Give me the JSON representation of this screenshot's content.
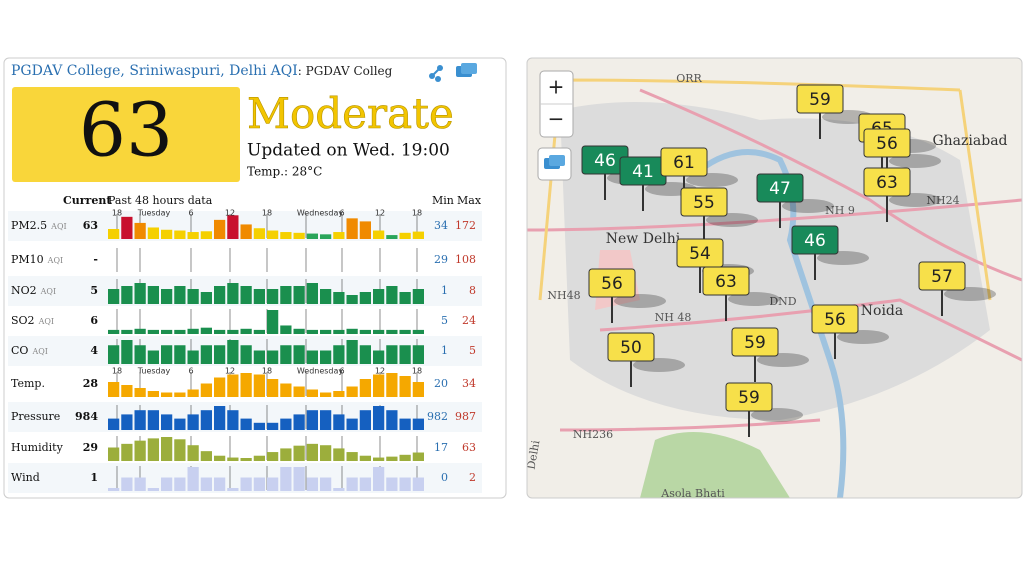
{
  "widget": {
    "station": "PGDAV College, Sriniwaspuri, Delhi",
    "aqi_link": "AQI",
    "station_short": ": PGDAV Colleg",
    "aqi": 63,
    "level": "Moderate",
    "updated": "Updated on Wed. 19:00",
    "temp": "Temp.: 28°C",
    "headers": {
      "current": "Current",
      "past": "Past 48 hours data",
      "min": "Min",
      "max": "Max"
    },
    "time_ticks": [
      "18",
      "Tuesday",
      "6",
      "12",
      "18",
      "Wednesday",
      "6",
      "12",
      "18"
    ],
    "rows": [
      {
        "name": "PM2.5",
        "unit": "AQI",
        "current": 63,
        "min": 34,
        "max": 172,
        "color": "#f5d000",
        "history": [
          80,
          160,
          120,
          90,
          75,
          70,
          60,
          65,
          140,
          170,
          110,
          85,
          70,
          60,
          55,
          50,
          45,
          60,
          150,
          130,
          70,
          40,
          55,
          63
        ]
      },
      {
        "name": "PM10",
        "unit": "AQI",
        "current": "-",
        "min": 29,
        "max": 108,
        "color": "#f5d000",
        "history": []
      },
      {
        "name": "NO2",
        "unit": "AQI",
        "current": 5,
        "min": 1,
        "max": 8,
        "color": "#1a8f4e",
        "history": [
          5,
          6,
          7,
          6,
          5,
          6,
          5,
          4,
          6,
          7,
          6,
          5,
          5,
          6,
          6,
          7,
          5,
          4,
          3,
          4,
          5,
          6,
          4,
          5
        ]
      },
      {
        "name": "SO2",
        "unit": "AQI",
        "current": 6,
        "min": 5,
        "max": 24,
        "color": "#1a8f4e",
        "history": [
          6,
          6,
          7,
          6,
          6,
          6,
          7,
          8,
          6,
          6,
          7,
          6,
          24,
          10,
          7,
          6,
          6,
          6,
          7,
          6,
          6,
          6,
          6,
          6
        ]
      },
      {
        "name": "CO",
        "unit": "AQI",
        "current": 4,
        "min": 1,
        "max": 5,
        "color": "#1a8f4e",
        "history": [
          4,
          5,
          4,
          3,
          4,
          4,
          3,
          4,
          4,
          5,
          4,
          3,
          3,
          4,
          4,
          3,
          3,
          4,
          5,
          4,
          3,
          4,
          4,
          4
        ]
      },
      {
        "name": "Temp.",
        "current": 28,
        "min": 20,
        "max": 34,
        "color": "#f5a800",
        "history": [
          28,
          26,
          24,
          22,
          21,
          21,
          23,
          27,
          31,
          33,
          34,
          33,
          30,
          27,
          25,
          23,
          21,
          22,
          25,
          30,
          33,
          34,
          32,
          28
        ]
      },
      {
        "name": "Pressure",
        "current": 984,
        "min": 982,
        "max": 987,
        "color": "#1560c0",
        "history": [
          984,
          985,
          986,
          986,
          985,
          984,
          985,
          986,
          987,
          986,
          984,
          983,
          983,
          984,
          985,
          986,
          986,
          985,
          984,
          986,
          987,
          986,
          984,
          984
        ]
      },
      {
        "name": "Humidity",
        "current": 29,
        "min": 17,
        "max": 63,
        "color": "#9cae3c",
        "history": [
          40,
          48,
          55,
          60,
          63,
          58,
          45,
          32,
          22,
          18,
          17,
          22,
          30,
          38,
          44,
          48,
          45,
          38,
          30,
          22,
          18,
          20,
          24,
          29
        ]
      },
      {
        "name": "Wind",
        "current": 1,
        "min": 0,
        "max": 2,
        "color": "#c8d0f0",
        "history": [
          0,
          1,
          1,
          0,
          1,
          1,
          2,
          1,
          1,
          0,
          1,
          1,
          1,
          2,
          2,
          1,
          1,
          0,
          1,
          1,
          2,
          1,
          1,
          1
        ]
      }
    ]
  },
  "map": {
    "zoom_in": "+",
    "zoom_out": "−",
    "labels": [
      "New Delhi",
      "Noida",
      "Ghaziabad",
      "ORR",
      "NH 9",
      "NH24",
      "NH48",
      "NH 48",
      "DND",
      "NH236",
      "Delhi",
      "Asola Bhati"
    ],
    "markers": [
      {
        "value": 59,
        "color": "#f7e04a"
      },
      {
        "value": 65,
        "color": "#f7e04a"
      },
      {
        "value": 56,
        "color": "#f7e04a"
      },
      {
        "value": 63,
        "color": "#f7e04a"
      },
      {
        "value": 46,
        "color": "#188a5a"
      },
      {
        "value": 41,
        "color": "#188a5a"
      },
      {
        "value": 61,
        "color": "#f7e04a"
      },
      {
        "value": 55,
        "color": "#f7e04a"
      },
      {
        "value": 47,
        "color": "#188a5a"
      },
      {
        "value": 46,
        "color": "#188a5a"
      },
      {
        "value": 54,
        "color": "#f7e04a"
      },
      {
        "value": 63,
        "color": "#f7e04a"
      },
      {
        "value": 56,
        "color": "#f7e04a"
      },
      {
        "value": 57,
        "color": "#f7e04a"
      },
      {
        "value": 56,
        "color": "#f7e04a"
      },
      {
        "value": 50,
        "color": "#f7e04a"
      },
      {
        "value": 59,
        "color": "#f7e04a"
      },
      {
        "value": 59,
        "color": "#f7e04a"
      }
    ]
  }
}
